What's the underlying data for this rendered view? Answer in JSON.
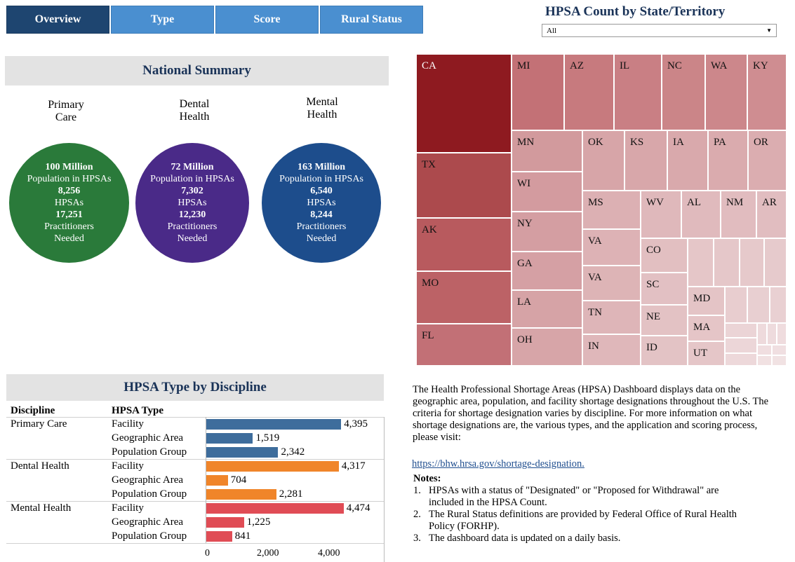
{
  "tabs": [
    {
      "label": "Overview"
    },
    {
      "label": "Type"
    },
    {
      "label": "Score"
    },
    {
      "label": "Rural Status"
    }
  ],
  "map": {
    "title": "HPSA Count by State/Territory",
    "filter_value": "All",
    "states": [
      "CA",
      "TX",
      "AK",
      "MO",
      "FL",
      "MI",
      "AZ",
      "IL",
      "NC",
      "WA",
      "KY",
      "MN",
      "WI",
      "NY",
      "GA",
      "LA",
      "OH",
      "OK",
      "KS",
      "IA",
      "PA",
      "OR",
      "MS",
      "WV",
      "AL",
      "NM",
      "AR",
      "MT",
      "VA",
      "TN",
      "IN",
      "CO",
      "SC",
      "NE",
      "ID",
      "MD",
      "MA",
      "UT"
    ]
  },
  "summary": {
    "title": "National Summary",
    "disciplines": [
      {
        "name_line1": "Primary",
        "name_line2": "Care",
        "population": "100 Million",
        "population_label": "Population in HPSAs",
        "hpsas": "8,256",
        "hpsas_label": "HPSAs",
        "practitioners": "17,251",
        "practitioners_label1": "Practitioners",
        "practitioners_label2": "Needed",
        "color": "#2a7a3a"
      },
      {
        "name_line1": "Dental",
        "name_line2": "Health",
        "population": "72 Million",
        "population_label": "Population in HPSAs",
        "hpsas": "7,302",
        "hpsas_label": "HPSAs",
        "practitioners": "12,230",
        "practitioners_label1": "Practitioners",
        "practitioners_label2": "Needed",
        "color": "#4a2a88"
      },
      {
        "name_line1": "Mental",
        "name_line2": "Health",
        "population": "163 Million",
        "population_label": "Population in HPSAs",
        "hpsas": "6,540",
        "hpsas_label": "HPSAs",
        "practitioners": "8,244",
        "practitioners_label1": "Practitioners",
        "practitioners_label2": "Needed",
        "color": "#1d4d8c"
      }
    ]
  },
  "type_chart": {
    "title": "HPSA Type by Discipline",
    "col_discipline": "Discipline",
    "col_type": "HPSA Type",
    "disciplines": [
      "Primary Care",
      "Dental Health",
      "Mental Health"
    ],
    "types": [
      "Facility",
      "Geographic Area",
      "Population Group"
    ],
    "axis_ticks": [
      "0",
      "2,000",
      "4,000"
    ]
  },
  "chart_data": {
    "type": "bar",
    "title": "HPSA Type by Discipline",
    "xlim": [
      0,
      5000
    ],
    "x_ticks": [
      0,
      2000,
      4000
    ],
    "rows": [
      {
        "discipline": "Primary Care",
        "type": "Facility",
        "value": 4395,
        "label": "4,395",
        "color": "#3e6d9c"
      },
      {
        "discipline": "Primary Care",
        "type": "Geographic Area",
        "value": 1519,
        "label": "1,519",
        "color": "#3e6d9c"
      },
      {
        "discipline": "Primary Care",
        "type": "Population Group",
        "value": 2342,
        "label": "2,342",
        "color": "#3e6d9c"
      },
      {
        "discipline": "Dental Health",
        "type": "Facility",
        "value": 4317,
        "label": "4,317",
        "color": "#f0852a"
      },
      {
        "discipline": "Dental Health",
        "type": "Geographic Area",
        "value": 704,
        "label": "704",
        "color": "#f0852a"
      },
      {
        "discipline": "Dental Health",
        "type": "Population Group",
        "value": 2281,
        "label": "2,281",
        "color": "#f0852a"
      },
      {
        "discipline": "Mental Health",
        "type": "Facility",
        "value": 4474,
        "label": "4,474",
        "color": "#e04c55"
      },
      {
        "discipline": "Mental Health",
        "type": "Geographic Area",
        "value": 1225,
        "label": "1,225",
        "color": "#e04c55"
      },
      {
        "discipline": "Mental Health",
        "type": "Population Group",
        "value": 841,
        "label": "841",
        "color": "#e04c55"
      }
    ]
  },
  "info": {
    "description": "The Health Professional Shortage Areas (HPSA) Dashboard displays data on the geographic area, population, and facility shortage designations throughout the U.S. The criteria for shortage designation varies by discipline. For more information on what shortage designations are, the various types, and the application and scoring process, please visit:",
    "link": "https://bhw.hrsa.gov/shortage-designation.",
    "notes_title": "Notes:",
    "notes": [
      {
        "num": "1.",
        "text": "HPSAs with a status of \"Designated\" or \"Proposed for Withdrawal\" are included in the HPSA Count."
      },
      {
        "num": "2.",
        "text": "The Rural Status definitions are provided by Federal Office of Rural Health Policy (FORHP)."
      },
      {
        "num": "3.",
        "text": "The dashboard data is updated on a daily basis."
      }
    ]
  }
}
